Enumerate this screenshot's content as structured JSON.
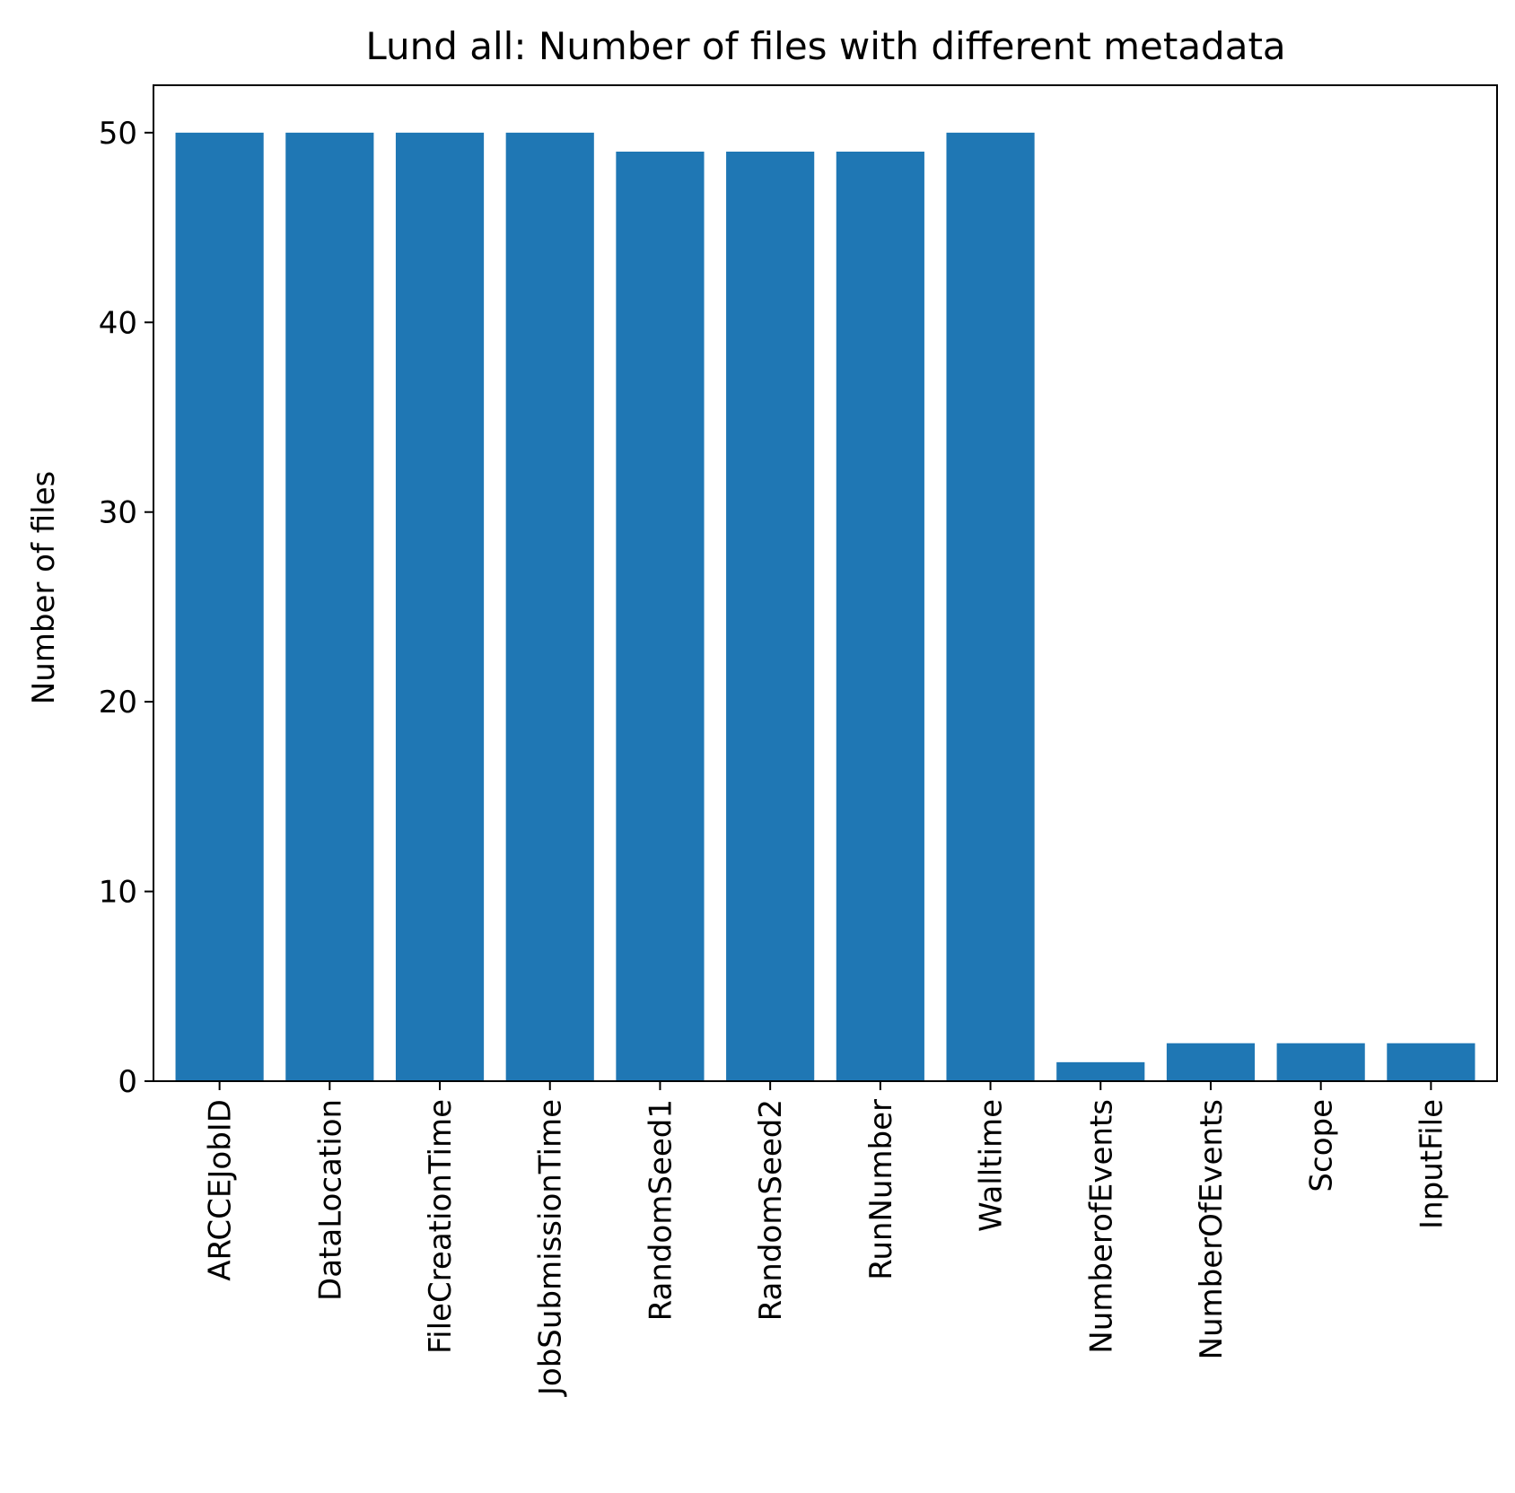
{
  "chart_data": {
    "type": "bar",
    "title": "Lund all: Number of files with different metadata",
    "xlabel": "",
    "ylabel": "Number of files",
    "categories": [
      "ARCCEJobID",
      "DataLocation",
      "FileCreationTime",
      "JobSubmissionTime",
      "RandomSeed1",
      "RandomSeed2",
      "RunNumber",
      "Walltime",
      "NumberofEvents",
      "NumberOfEvents",
      "Scope",
      "InputFile"
    ],
    "values": [
      50,
      50,
      50,
      50,
      49,
      49,
      49,
      50,
      1,
      2,
      2,
      2
    ],
    "ylim": [
      0,
      52.5
    ],
    "yticks": [
      0,
      10,
      20,
      30,
      40,
      50
    ],
    "bar_color": "#1f77b4",
    "grid": false,
    "legend": "none"
  }
}
